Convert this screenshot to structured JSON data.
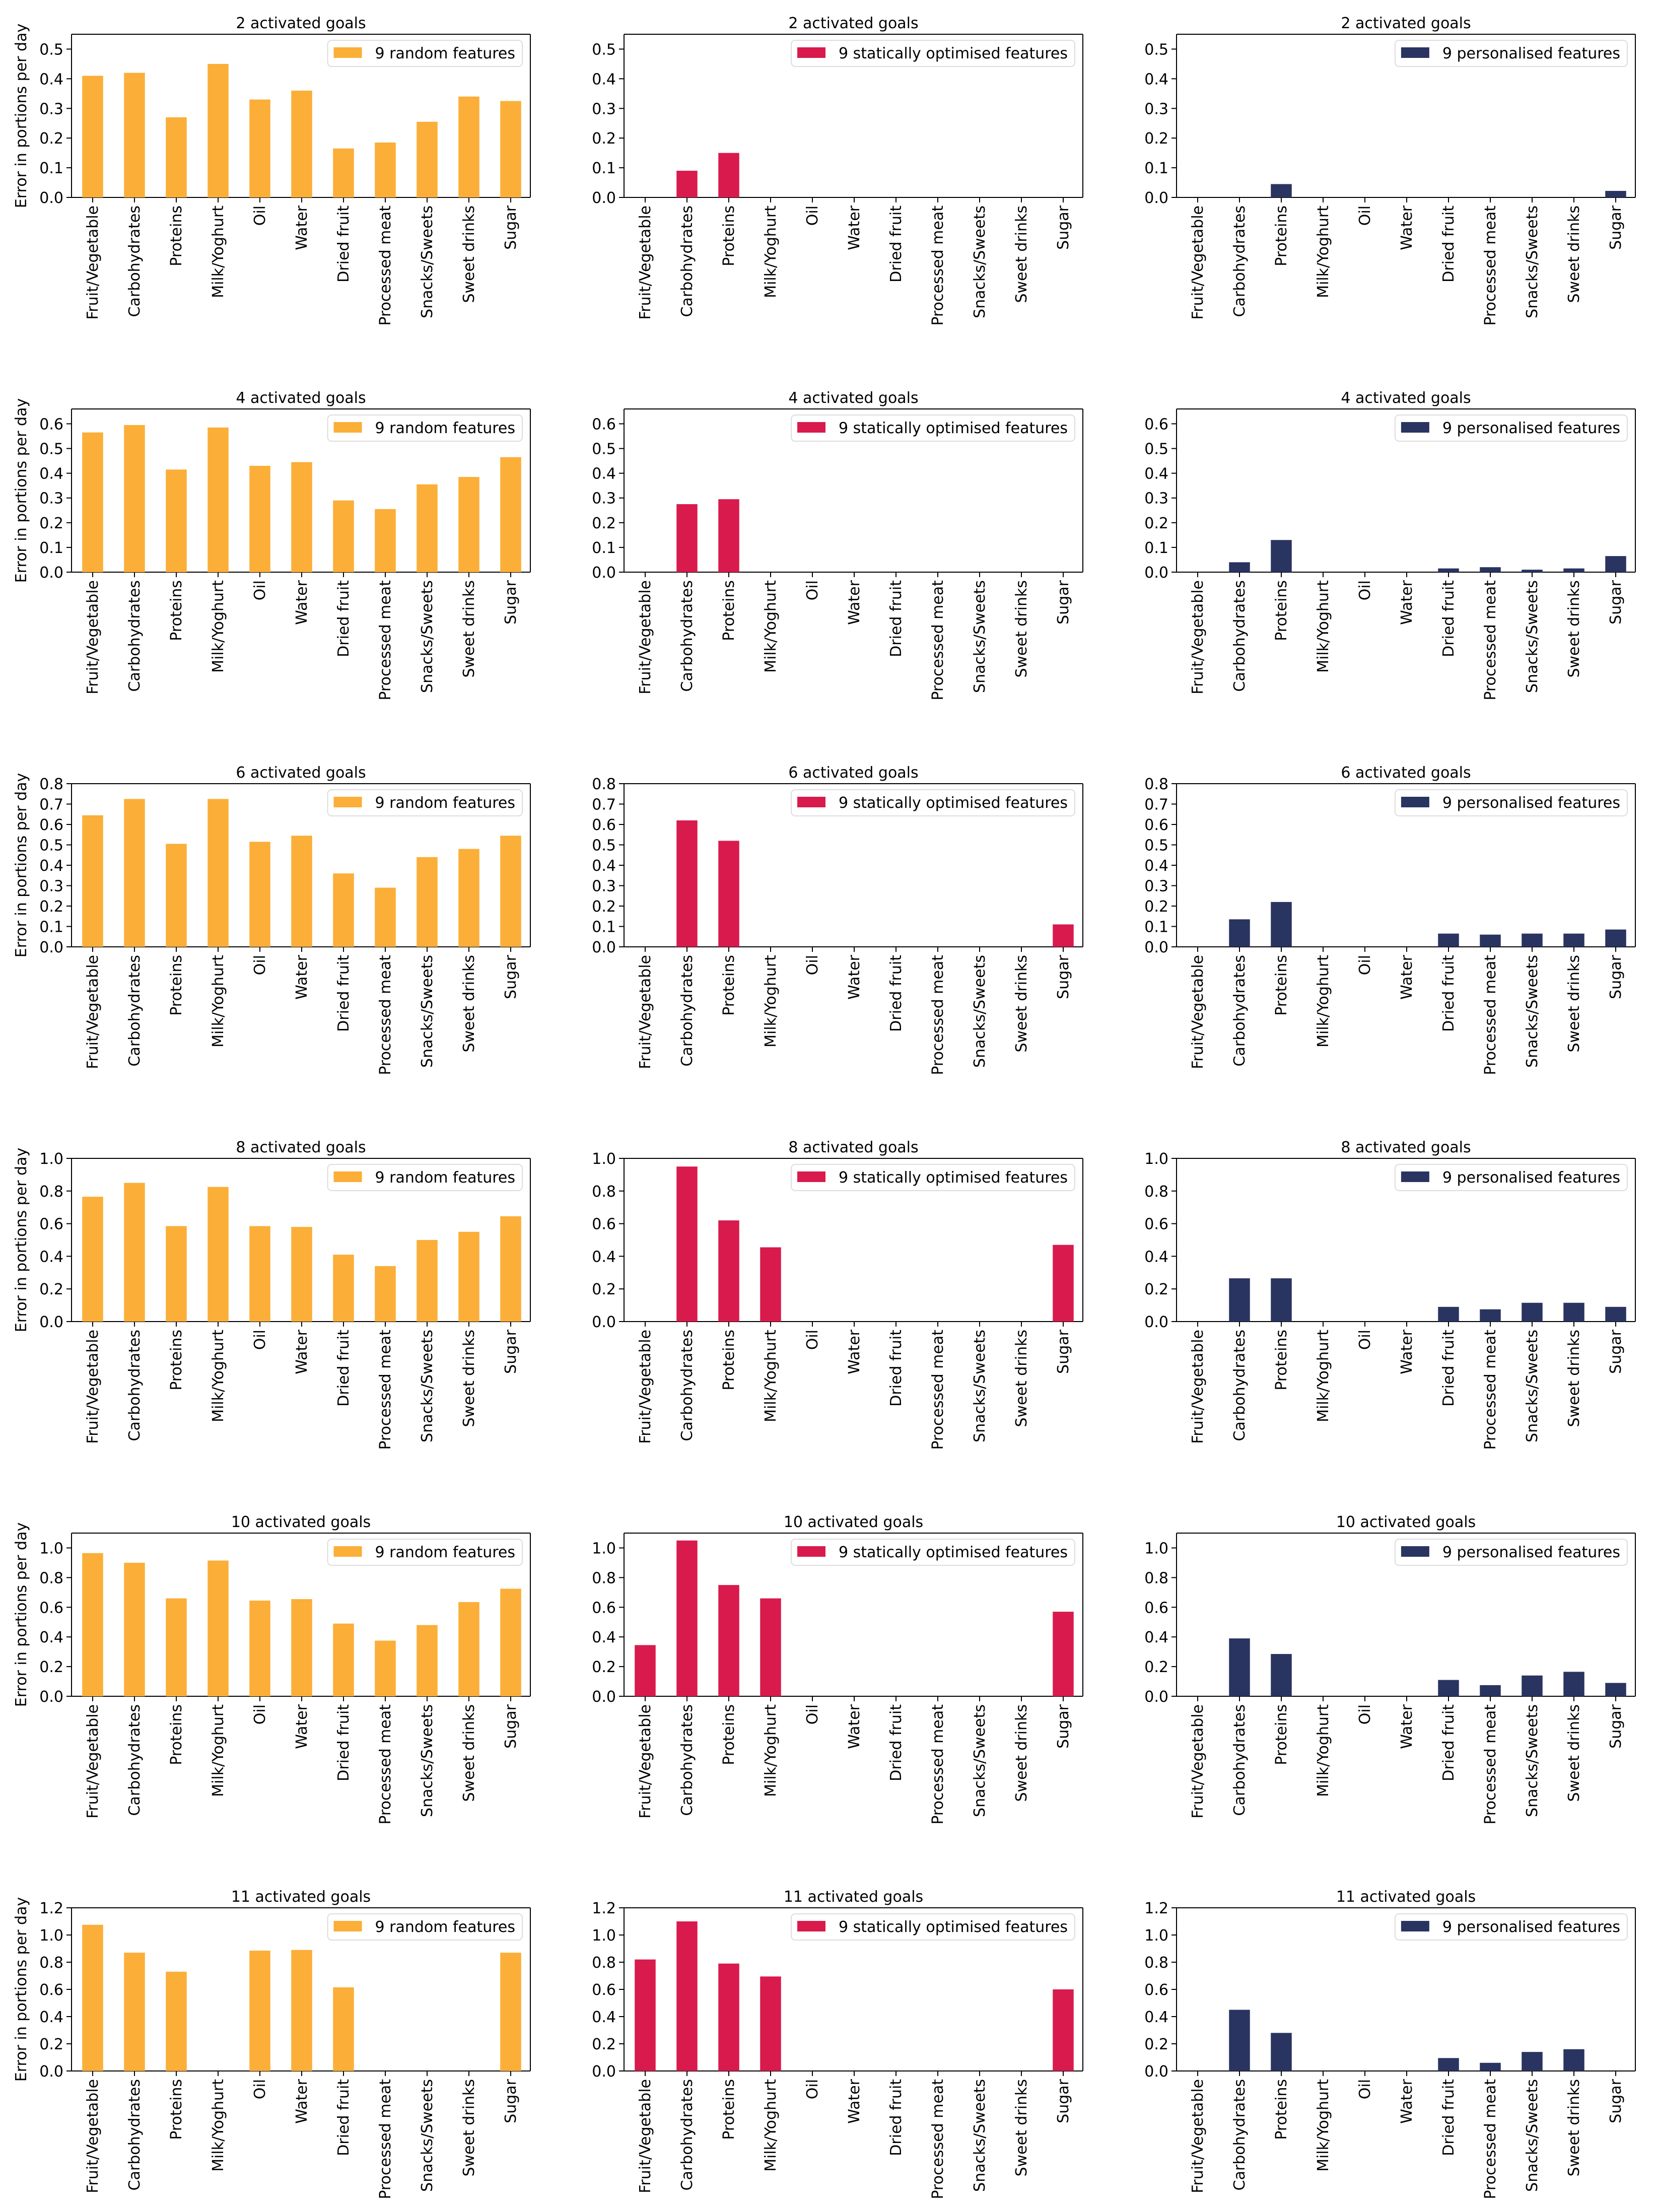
{
  "figure": {
    "ylabel": "Error in portions per day",
    "categories": [
      "Fruit/Vegetable",
      "Carbohydrates",
      "Proteins",
      "Milk/Yoghurt",
      "Oil",
      "Water",
      "Dried fruit",
      "Processed meat",
      "Snacks/Sweets",
      "Sweet drinks",
      "Sugar"
    ],
    "colors": {
      "random": "#fbae38",
      "static": "#d81b4c",
      "personal": "#2a3460"
    }
  },
  "chart_data": [
    {
      "type": "bar",
      "title": "2 activated goals",
      "legend": "9 random features",
      "series_key": "random",
      "ylabel": "Error in portions per day",
      "ylim": [
        0,
        0.55
      ],
      "yticks": [
        "0.0",
        "0.1",
        "0.2",
        "0.3",
        "0.4",
        "0.5"
      ],
      "values": [
        0.41,
        0.42,
        0.27,
        0.45,
        0.33,
        0.36,
        0.165,
        0.185,
        0.255,
        0.34,
        0.325
      ]
    },
    {
      "type": "bar",
      "title": "2 activated goals",
      "legend": "9 statically optimised features",
      "series_key": "static",
      "ylim": [
        0,
        0.55
      ],
      "yticks": [
        "0.0",
        "0.1",
        "0.2",
        "0.3",
        "0.4",
        "0.5"
      ],
      "values": [
        0,
        0.09,
        0.15,
        0,
        0,
        0,
        0,
        0,
        0,
        0,
        0
      ]
    },
    {
      "type": "bar",
      "title": "2 activated goals",
      "legend": "9 personalised features",
      "series_key": "personal",
      "ylim": [
        0,
        0.55
      ],
      "yticks": [
        "0.0",
        "0.1",
        "0.2",
        "0.3",
        "0.4",
        "0.5"
      ],
      "values": [
        0,
        0,
        0.045,
        0,
        0,
        0,
        0,
        0,
        0,
        0,
        0.022
      ]
    },
    {
      "type": "bar",
      "title": "4 activated goals",
      "legend": "9 random features",
      "series_key": "random",
      "ylabel": "Error in portions per day",
      "ylim": [
        0,
        0.66
      ],
      "yticks": [
        "0.0",
        "0.1",
        "0.2",
        "0.3",
        "0.4",
        "0.5",
        "0.6"
      ],
      "values": [
        0.565,
        0.595,
        0.415,
        0.585,
        0.43,
        0.445,
        0.29,
        0.255,
        0.355,
        0.385,
        0.465
      ]
    },
    {
      "type": "bar",
      "title": "4 activated goals",
      "legend": "9 statically optimised features",
      "series_key": "static",
      "ylim": [
        0,
        0.66
      ],
      "yticks": [
        "0.0",
        "0.1",
        "0.2",
        "0.3",
        "0.4",
        "0.5",
        "0.6"
      ],
      "values": [
        0,
        0.275,
        0.295,
        0,
        0,
        0,
        0,
        0,
        0,
        0,
        0
      ]
    },
    {
      "type": "bar",
      "title": "4 activated goals",
      "legend": "9 personalised features",
      "series_key": "personal",
      "ylim": [
        0,
        0.66
      ],
      "yticks": [
        "0.0",
        "0.1",
        "0.2",
        "0.3",
        "0.4",
        "0.5",
        "0.6"
      ],
      "values": [
        0,
        0.04,
        0.13,
        0,
        0,
        0,
        0.015,
        0.02,
        0.01,
        0.015,
        0.065
      ]
    },
    {
      "type": "bar",
      "title": "6 activated goals",
      "legend": "9 random features",
      "series_key": "random",
      "ylabel": "Error in portions per day",
      "ylim": [
        0,
        0.8
      ],
      "yticks": [
        "0.0",
        "0.1",
        "0.2",
        "0.3",
        "0.4",
        "0.5",
        "0.6",
        "0.7",
        "0.8"
      ],
      "values": [
        0.645,
        0.725,
        0.505,
        0.725,
        0.515,
        0.545,
        0.36,
        0.29,
        0.44,
        0.48,
        0.545
      ]
    },
    {
      "type": "bar",
      "title": "6 activated goals",
      "legend": "9 statically optimised features",
      "series_key": "static",
      "ylim": [
        0,
        0.8
      ],
      "yticks": [
        "0.0",
        "0.1",
        "0.2",
        "0.3",
        "0.4",
        "0.5",
        "0.6",
        "0.7",
        "0.8"
      ],
      "values": [
        0,
        0.62,
        0.52,
        0,
        0,
        0,
        0,
        0,
        0,
        0,
        0.11
      ]
    },
    {
      "type": "bar",
      "title": "6 activated goals",
      "legend": "9 personalised features",
      "series_key": "personal",
      "ylim": [
        0,
        0.8
      ],
      "yticks": [
        "0.0",
        "0.1",
        "0.2",
        "0.3",
        "0.4",
        "0.5",
        "0.6",
        "0.7",
        "0.8"
      ],
      "values": [
        0,
        0.135,
        0.22,
        0,
        0,
        0,
        0.065,
        0.06,
        0.065,
        0.065,
        0.085
      ]
    },
    {
      "type": "bar",
      "title": "8 activated goals",
      "legend": "9 random features",
      "series_key": "random",
      "ylabel": "Error in portions per day",
      "ylim": [
        0,
        1.0
      ],
      "yticks": [
        "0.0",
        "0.2",
        "0.4",
        "0.6",
        "0.8",
        "1.0"
      ],
      "values": [
        0.765,
        0.85,
        0.585,
        0.825,
        0.585,
        0.58,
        0.41,
        0.34,
        0.5,
        0.55,
        0.645
      ]
    },
    {
      "type": "bar",
      "title": "8 activated goals",
      "legend": "9 statically optimised features",
      "series_key": "static",
      "ylim": [
        0,
        1.0
      ],
      "yticks": [
        "0.0",
        "0.2",
        "0.4",
        "0.6",
        "0.8",
        "1.0"
      ],
      "values": [
        0,
        0.95,
        0.62,
        0.455,
        0,
        0,
        0,
        0,
        0,
        0,
        0.47
      ]
    },
    {
      "type": "bar",
      "title": "8 activated goals",
      "legend": "9 personalised features",
      "series_key": "personal",
      "ylim": [
        0,
        1.0
      ],
      "yticks": [
        "0.0",
        "0.2",
        "0.4",
        "0.6",
        "0.8",
        "1.0"
      ],
      "values": [
        0,
        0.265,
        0.265,
        0,
        0,
        0,
        0.09,
        0.075,
        0.115,
        0.115,
        0.09
      ]
    },
    {
      "type": "bar",
      "title": "10 activated goals",
      "legend": "9 random features",
      "series_key": "random",
      "ylabel": "Error in portions per day",
      "ylim": [
        0,
        1.1
      ],
      "yticks": [
        "0.0",
        "0.2",
        "0.4",
        "0.6",
        "0.8",
        "1.0"
      ],
      "values": [
        0.965,
        0.9,
        0.66,
        0.915,
        0.645,
        0.655,
        0.49,
        0.375,
        0.48,
        0.635,
        0.725
      ]
    },
    {
      "type": "bar",
      "title": "10 activated goals",
      "legend": "9 statically optimised features",
      "series_key": "static",
      "ylim": [
        0,
        1.1
      ],
      "yticks": [
        "0.0",
        "0.2",
        "0.4",
        "0.6",
        "0.8",
        "1.0"
      ],
      "values": [
        0.345,
        1.05,
        0.75,
        0.66,
        0,
        0,
        0,
        0,
        0,
        0,
        0.57
      ]
    },
    {
      "type": "bar",
      "title": "10 activated goals",
      "legend": "9 personalised features",
      "series_key": "personal",
      "ylim": [
        0,
        1.1
      ],
      "yticks": [
        "0.0",
        "0.2",
        "0.4",
        "0.6",
        "0.8",
        "1.0"
      ],
      "values": [
        0,
        0.39,
        0.285,
        0,
        0,
        0,
        0.11,
        0.075,
        0.14,
        0.165,
        0.09
      ]
    },
    {
      "type": "bar",
      "title": "11 activated goals",
      "legend": "9 random features",
      "series_key": "random",
      "ylabel": "Error in portions per day",
      "ylim": [
        0,
        1.2
      ],
      "yticks": [
        "0.0",
        "0.2",
        "0.4",
        "0.6",
        "0.8",
        "1.0",
        "1.2"
      ],
      "values": [
        1.075,
        0.87,
        0.73,
        0,
        0.885,
        0.89,
        0.615,
        0,
        0,
        0,
        0.87
      ]
    },
    {
      "type": "bar",
      "title": "11 activated goals",
      "legend": "9 statically optimised features",
      "series_key": "static",
      "ylim": [
        0,
        1.2
      ],
      "yticks": [
        "0.0",
        "0.2",
        "0.4",
        "0.6",
        "0.8",
        "1.0",
        "1.2"
      ],
      "values": [
        0.82,
        1.1,
        0.79,
        0.695,
        0,
        0,
        0,
        0,
        0,
        0,
        0.6
      ]
    },
    {
      "type": "bar",
      "title": "11 activated goals",
      "legend": "9 personalised features",
      "series_key": "personal",
      "ylim": [
        0,
        1.2
      ],
      "yticks": [
        "0.0",
        "0.2",
        "0.4",
        "0.6",
        "0.8",
        "1.0",
        "1.2"
      ],
      "values": [
        0,
        0.45,
        0.28,
        0,
        0,
        0,
        0.095,
        0.06,
        0.14,
        0.16,
        0
      ]
    }
  ]
}
